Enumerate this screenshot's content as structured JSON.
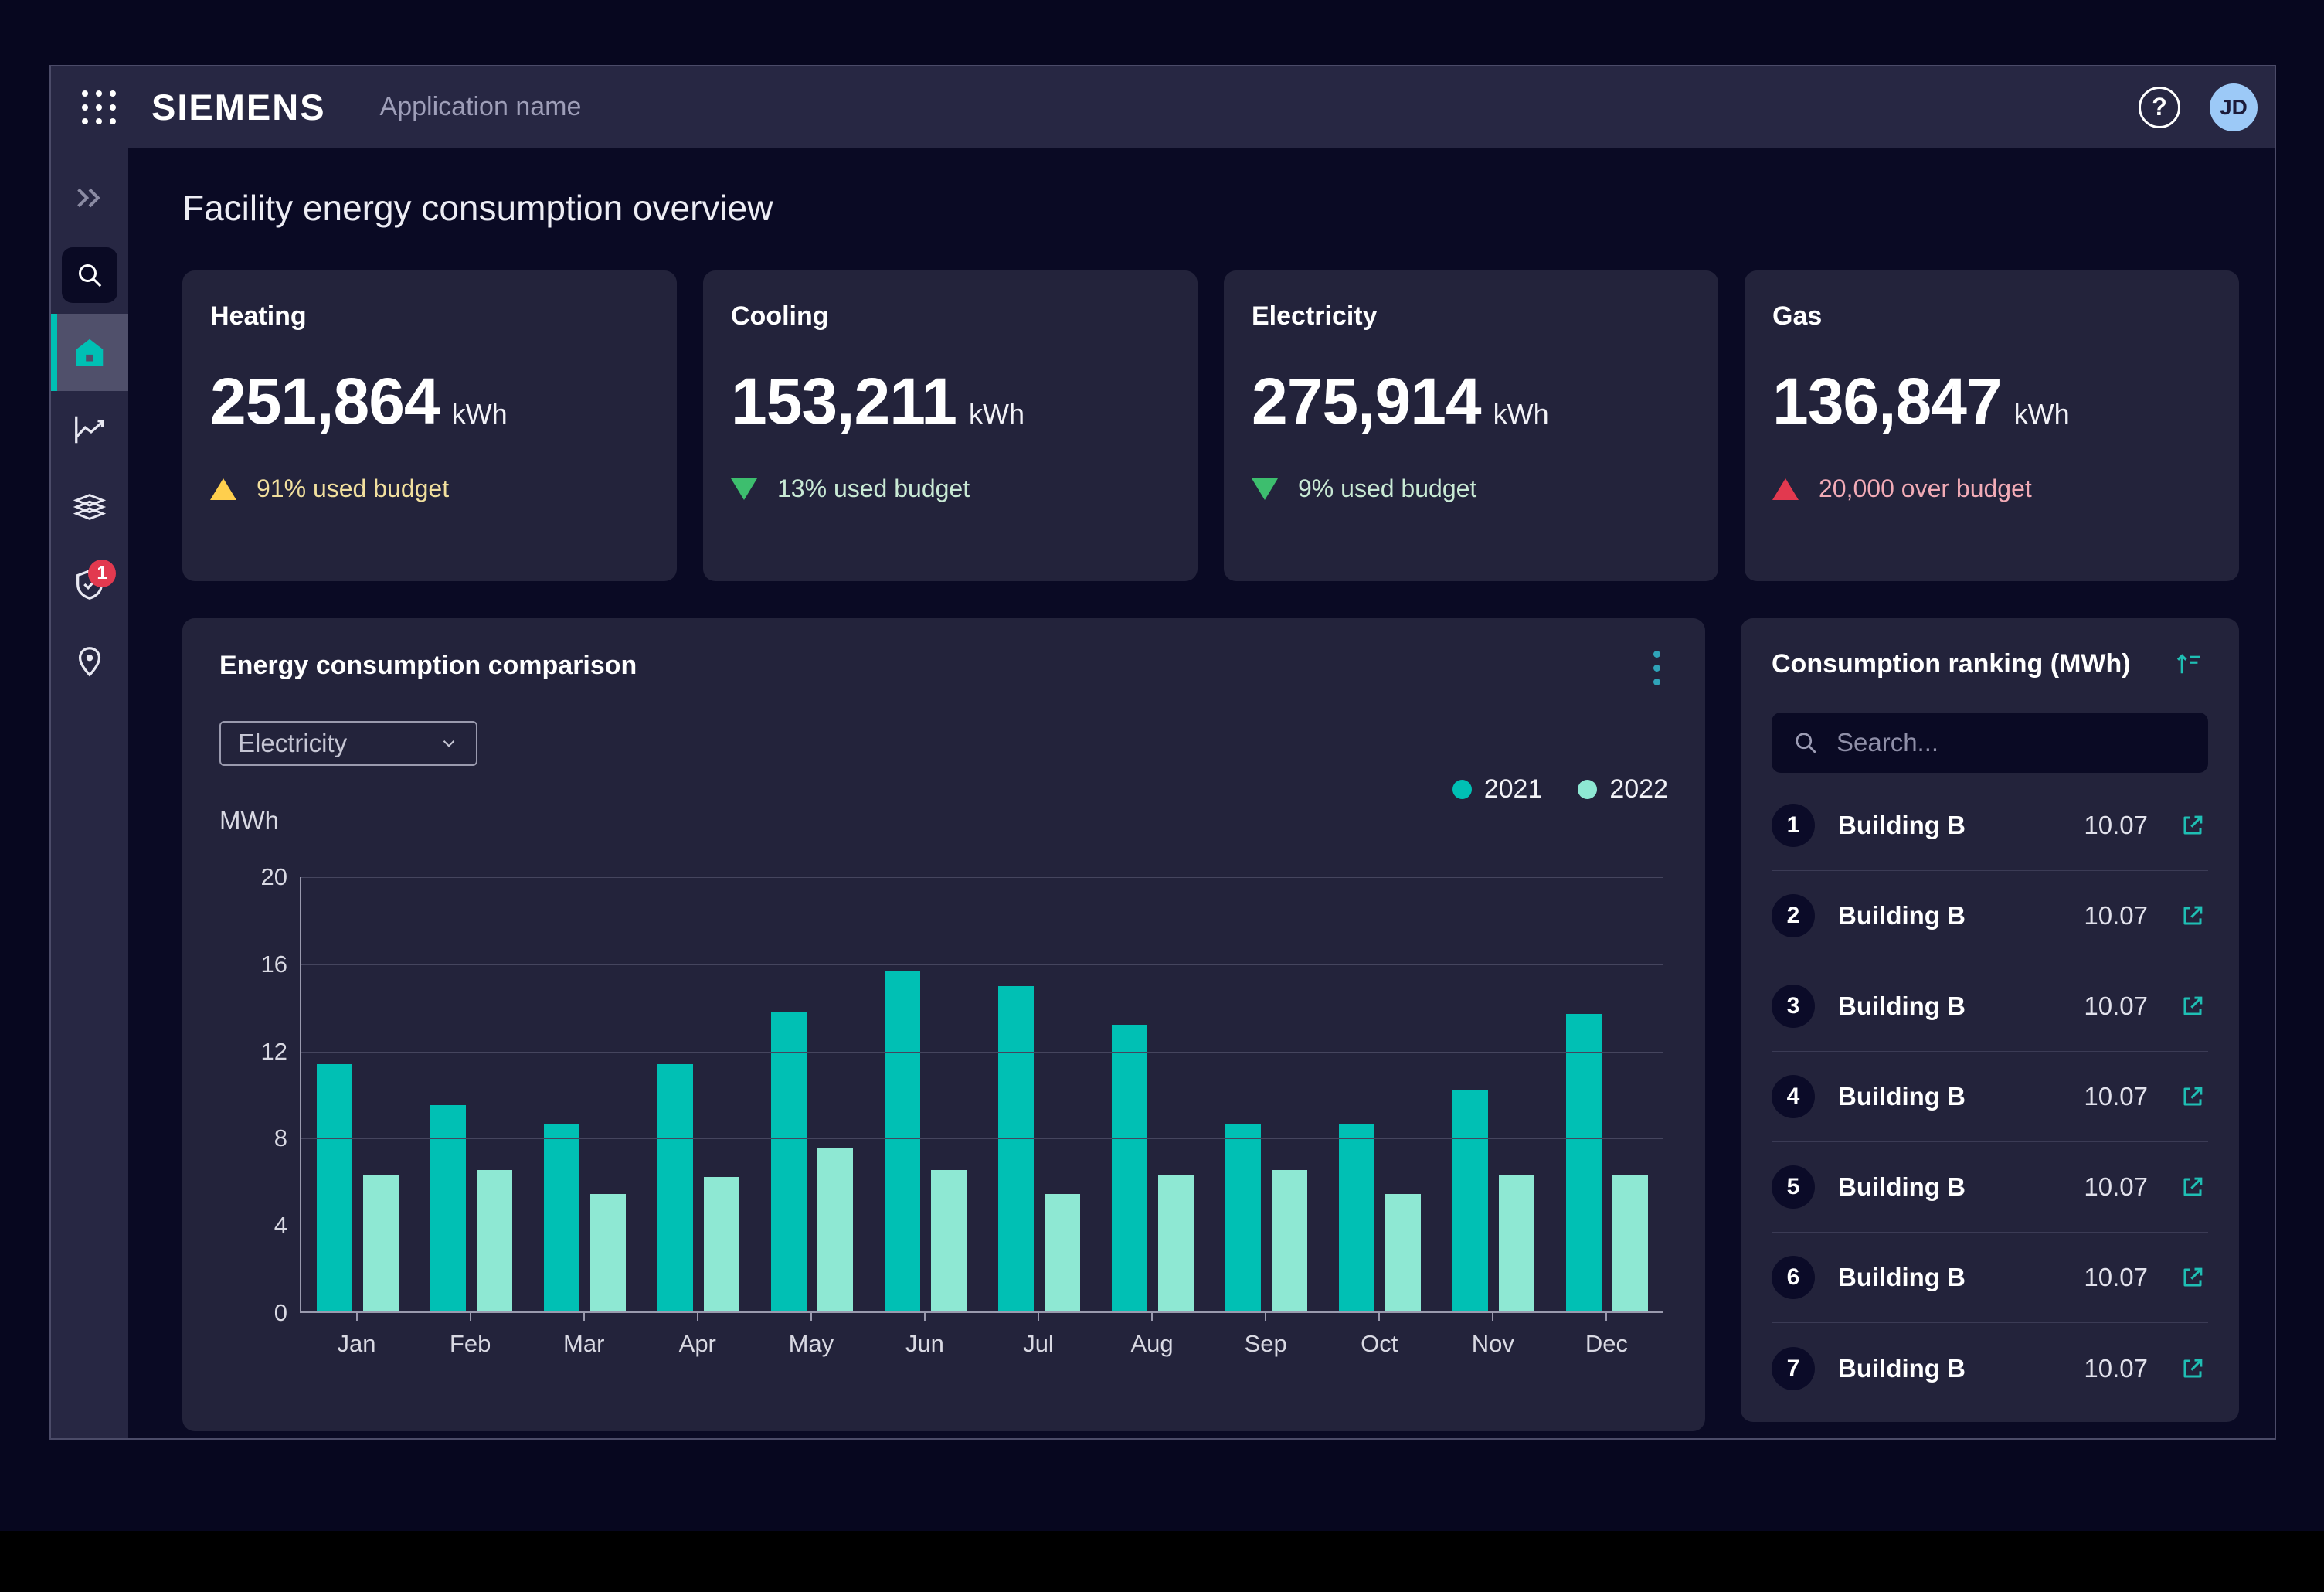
{
  "header": {
    "logo": "SIEMENS",
    "app_name": "Application name",
    "help_label": "?",
    "avatar_initials": "JD"
  },
  "sidebar": {
    "items": [
      {
        "id": "collapse",
        "icon": "chevron-double-right-icon",
        "active": false
      },
      {
        "id": "search",
        "icon": "search-icon",
        "active": false
      },
      {
        "id": "home",
        "icon": "home-icon",
        "active": true
      },
      {
        "id": "analytics",
        "icon": "line-chart-icon",
        "active": false
      },
      {
        "id": "layers",
        "icon": "layers-icon",
        "active": false
      },
      {
        "id": "compliance",
        "icon": "shield-check-icon",
        "active": false,
        "badge": "1"
      },
      {
        "id": "locations",
        "icon": "map-pin-icon",
        "active": false
      }
    ],
    "badge_count": "1"
  },
  "page": {
    "title": "Facility energy consumption overview"
  },
  "colors": {
    "accent_teal": "#00C0B4",
    "mint": "#8EE8D3",
    "warning_icon": "#FFCF4D",
    "warning_text": "#F1DF9E",
    "good_icon": "#3DBE6E",
    "good_text": "#C8E9D4",
    "alert_icon": "#E2394F",
    "alert_text": "#F2ABB6",
    "card_bg": "#23233B",
    "avatar_bg": "#9CC9F7"
  },
  "stat_cards": [
    {
      "title": "Heating",
      "value": "251,864",
      "unit": "kWh",
      "status": {
        "type": "warning",
        "icon": "triangle-up",
        "text": "91% used budget"
      }
    },
    {
      "title": "Cooling",
      "value": "153,211",
      "unit": "kWh",
      "status": {
        "type": "good",
        "icon": "triangle-down",
        "text": "13% used budget"
      }
    },
    {
      "title": "Electricity",
      "value": "275,914",
      "unit": "kWh",
      "status": {
        "type": "good",
        "icon": "triangle-down",
        "text": "9% used budget"
      }
    },
    {
      "title": "Gas",
      "value": "136,847",
      "unit": "kWh",
      "status": {
        "type": "alert",
        "icon": "triangle-up",
        "text": "20,000 over budget"
      }
    }
  ],
  "chart_card": {
    "title": "Energy consumption comparison",
    "dropdown_value": "Electricity",
    "menu_icon": "kebab-menu-icon"
  },
  "chart_data": {
    "type": "bar",
    "title": "Energy consumption comparison",
    "xlabel": "",
    "ylabel": "MWh",
    "ylim": [
      0,
      20
    ],
    "yticks": [
      0,
      4,
      8,
      12,
      16,
      20
    ],
    "grid": true,
    "legend_position": "top-right",
    "categories": [
      "Jan",
      "Feb",
      "Mar",
      "Apr",
      "May",
      "Jun",
      "Jul",
      "Aug",
      "Sep",
      "Oct",
      "Nov",
      "Dec"
    ],
    "series": [
      {
        "name": "2021",
        "color": "#00C0B4",
        "values": [
          11.4,
          9.5,
          8.6,
          11.4,
          13.8,
          15.7,
          15.0,
          13.2,
          8.6,
          8.6,
          10.2,
          13.7
        ]
      },
      {
        "name": "2022",
        "color": "#8EE8D3",
        "values": [
          6.3,
          6.5,
          5.4,
          6.2,
          7.5,
          6.5,
          5.4,
          6.3,
          6.5,
          5.4,
          6.3,
          6.3
        ]
      }
    ]
  },
  "ranking": {
    "title": "Consumption ranking (MWh)",
    "sort_icon": "sort-ascending-icon",
    "search_placeholder": "Search...",
    "rows": [
      {
        "rank": "1",
        "name": "Building B",
        "value": "10.07"
      },
      {
        "rank": "2",
        "name": "Building B",
        "value": "10.07"
      },
      {
        "rank": "3",
        "name": "Building B",
        "value": "10.07"
      },
      {
        "rank": "4",
        "name": "Building B",
        "value": "10.07"
      },
      {
        "rank": "5",
        "name": "Building B",
        "value": "10.07"
      },
      {
        "rank": "6",
        "name": "Building B",
        "value": "10.07"
      },
      {
        "rank": "7",
        "name": "Building B",
        "value": "10.07"
      }
    ]
  }
}
